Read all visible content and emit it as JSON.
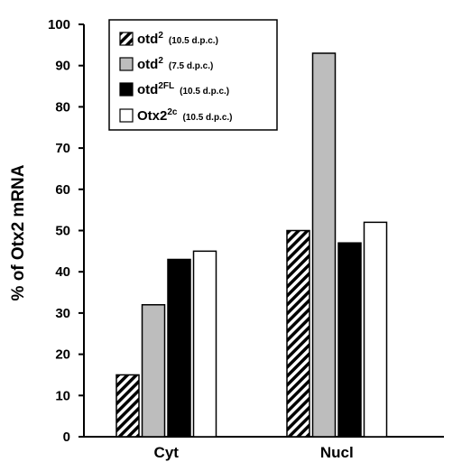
{
  "chart_data": {
    "type": "bar",
    "ylabel": "% of Otx2 mRNA",
    "ylim": [
      0,
      100
    ],
    "yticks": [
      "0",
      "10",
      "20",
      "30",
      "40",
      "50",
      "60",
      "70",
      "80",
      "90",
      "100"
    ],
    "categories": [
      "Cyt",
      "Nucl"
    ],
    "series": [
      {
        "name": "otd2 (10.5 d.p.c.)",
        "label_main": "otd",
        "label_sup": "2",
        "label_note": "(10.5 d.p.c.)",
        "fill": "hatch",
        "values": [
          15,
          50
        ]
      },
      {
        "name": "otd2 (7.5 d.p.c.)",
        "label_main": "otd",
        "label_sup": "2",
        "label_note": "(7.5 d.p.c.)",
        "fill": "#bdbdbd",
        "values": [
          32,
          93
        ]
      },
      {
        "name": "otd2FL (10.5 d.p.c.)",
        "label_main": "otd",
        "label_sup": "2FL",
        "label_note": "(10.5 d.p.c.)",
        "fill": "#000000",
        "values": [
          43,
          47
        ]
      },
      {
        "name": "Otx22c (10.5 d.p.c.)",
        "label_main": "Otx2",
        "label_sup": "2c",
        "label_note": "(10.5 d.p.c.)",
        "fill": "#ffffff",
        "values": [
          45,
          52
        ]
      }
    ],
    "legend_position": "top-left",
    "grid": false
  }
}
